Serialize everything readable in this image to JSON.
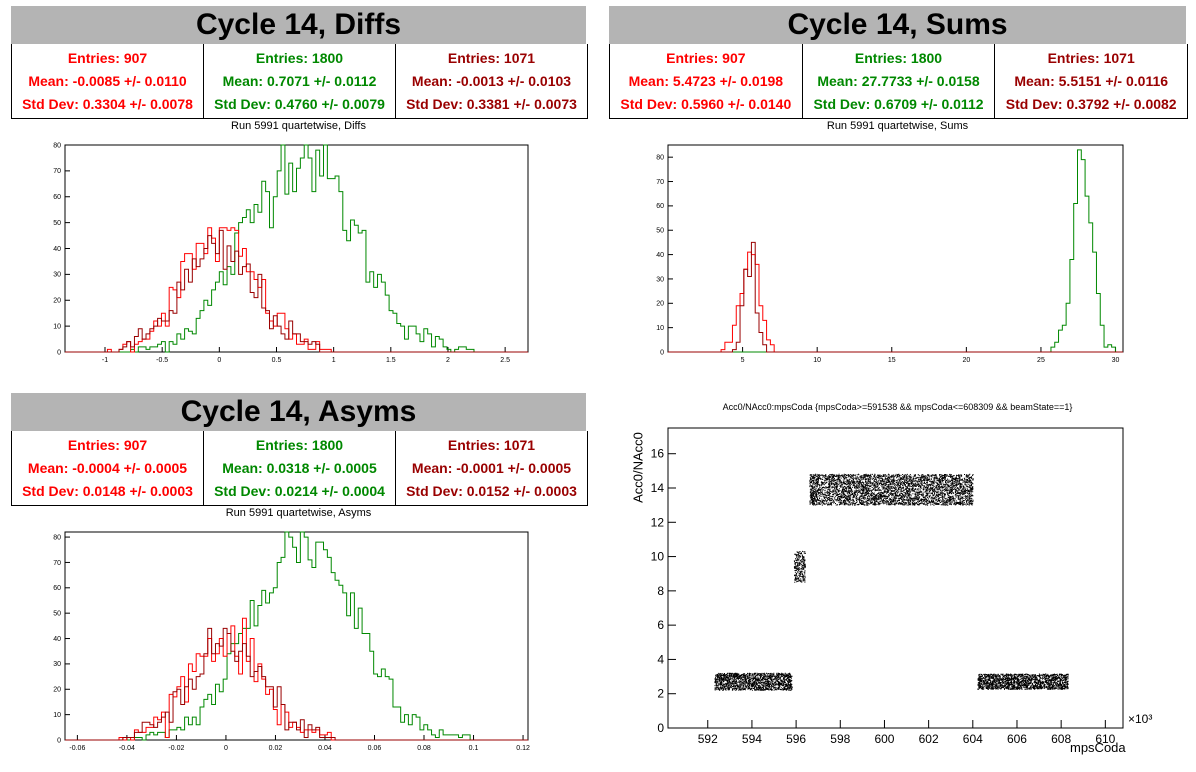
{
  "panels": {
    "diffs": {
      "title": "Cycle 14, Diffs",
      "subtitle": "Run 5991 quartetwise, Diffs",
      "stats": [
        {
          "entries": "Entries: 907",
          "mean": "Mean: -0.0085 +/- 0.0110",
          "std": "Std Dev: 0.3304 +/- 0.0078",
          "color": "#ff0000"
        },
        {
          "entries": "Entries: 1800",
          "mean": "Mean: 0.7071 +/- 0.0112",
          "std": "Std Dev: 0.4760 +/- 0.0079",
          "color": "#008800"
        },
        {
          "entries": "Entries: 1071",
          "mean": "Mean: -0.0013 +/- 0.0103",
          "std": "Std Dev: 0.3381 +/- 0.0073",
          "color": "#990000"
        }
      ]
    },
    "sums": {
      "title": "Cycle 14, Sums",
      "subtitle": "Run 5991 quartetwise, Sums",
      "stats": [
        {
          "entries": "Entries: 907",
          "mean": "Mean: 5.4723 +/- 0.0198",
          "std": "Std Dev: 0.5960 +/- 0.0140",
          "color": "#ff0000"
        },
        {
          "entries": "Entries: 1800",
          "mean": "Mean: 27.7733 +/- 0.0158",
          "std": "Std Dev: 0.6709 +/- 0.0112",
          "color": "#008800"
        },
        {
          "entries": "Entries: 1071",
          "mean": "Mean: 5.5151 +/- 0.0116",
          "std": "Std Dev: 0.3792 +/- 0.0082",
          "color": "#990000"
        }
      ]
    },
    "asyms": {
      "title": "Cycle 14, Asyms",
      "subtitle": "Run 5991 quartetwise, Asyms",
      "stats": [
        {
          "entries": "Entries: 907",
          "mean": "Mean: -0.0004 +/- 0.0005",
          "std": "Std Dev: 0.0148 +/- 0.0003",
          "color": "#ff0000"
        },
        {
          "entries": "Entries: 1800",
          "mean": "Mean: 0.0318 +/- 0.0005",
          "std": "Std Dev: 0.0214 +/- 0.0004",
          "color": "#008800"
        },
        {
          "entries": "Entries: 1071",
          "mean": "Mean: -0.0001 +/- 0.0005",
          "std": "Std Dev: 0.0152 +/- 0.0003",
          "color": "#990000"
        }
      ]
    },
    "scatter": {
      "title": "Acc0/NAcc0:mpsCoda {mpsCoda>=591538 && mpsCoda<=608309 && beamState==1}",
      "xlabel": "mpsCoda",
      "ylabel": "Acc0/NAcc0",
      "exponent": "×10³"
    }
  },
  "chart_data": [
    {
      "type": "histogram",
      "title": "Run 5991 quartetwise, Diffs",
      "xlim": [
        -1.35,
        2.7
      ],
      "ylim": [
        0,
        80
      ],
      "xticks": [
        -1,
        -0.5,
        0,
        0.5,
        1,
        1.5,
        2,
        2.5
      ],
      "yticks": [
        0,
        10,
        20,
        30,
        40,
        50,
        60,
        70,
        80
      ],
      "series": [
        {
          "color": "#008800",
          "mean": 0.7071,
          "std": 0.476,
          "peak": 77
        },
        {
          "color": "#ff0000",
          "mean": -0.0085,
          "std": 0.3304,
          "peak": 44
        },
        {
          "color": "#990000",
          "mean": -0.0013,
          "std": 0.3381,
          "peak": 38
        }
      ]
    },
    {
      "type": "histogram",
      "title": "Run 5991 quartetwise, Sums",
      "xlim": [
        0,
        30.5
      ],
      "ylim": [
        0,
        85
      ],
      "xticks": [
        5,
        10,
        15,
        20,
        25,
        30
      ],
      "yticks": [
        0,
        10,
        20,
        30,
        40,
        50,
        60,
        70,
        80
      ],
      "series": [
        {
          "color": "#008800",
          "mean": 27.7733,
          "std": 0.6709,
          "peak": 82
        },
        {
          "color": "#ff0000",
          "mean": 5.4723,
          "std": 0.596,
          "peak": 46
        },
        {
          "color": "#990000",
          "mean": 5.5151,
          "std": 0.3792,
          "peak": 45
        }
      ]
    },
    {
      "type": "histogram",
      "title": "Run 5991 quartetwise, Asyms",
      "xlim": [
        -0.065,
        0.122
      ],
      "ylim": [
        0,
        82
      ],
      "xticks": [
        -0.06,
        -0.04,
        -0.02,
        0,
        0.02,
        0.04,
        0.06,
        0.08,
        0.1,
        0.12
      ],
      "yticks": [
        0,
        10,
        20,
        30,
        40,
        50,
        60,
        70,
        80
      ],
      "series": [
        {
          "color": "#008800",
          "mean": 0.0318,
          "std": 0.0214,
          "peak": 79
        },
        {
          "color": "#ff0000",
          "mean": -0.0004,
          "std": 0.0148,
          "peak": 41
        },
        {
          "color": "#990000",
          "mean": -0.0001,
          "std": 0.0152,
          "peak": 38
        }
      ]
    },
    {
      "type": "scatter",
      "title": "Acc0/NAcc0:mpsCoda {mpsCoda>=591538 && mpsCoda<=608309 && beamState==1}",
      "xlabel": "mpsCoda",
      "ylabel": "Acc0/NAcc0",
      "xlim": [
        590.2,
        610.8
      ],
      "ylim": [
        0,
        17.5
      ],
      "xticks": [
        592,
        594,
        596,
        598,
        600,
        602,
        604,
        606,
        608,
        610
      ],
      "yticks": [
        0,
        2,
        4,
        6,
        8,
        10,
        12,
        14,
        16
      ],
      "clusters": [
        {
          "x": [
            592.3,
            595.8
          ],
          "y_center": 2.7,
          "y_spread": 0.5,
          "count": 1600
        },
        {
          "x": [
            595.9,
            596.4
          ],
          "y_center": 9.4,
          "y_spread": 0.9,
          "count": 250
        },
        {
          "x": [
            596.6,
            604.0
          ],
          "y_center": 13.9,
          "y_spread": 0.9,
          "count": 4200
        },
        {
          "x": [
            604.2,
            608.3
          ],
          "y_center": 2.7,
          "y_spread": 0.45,
          "count": 1800
        }
      ]
    }
  ]
}
